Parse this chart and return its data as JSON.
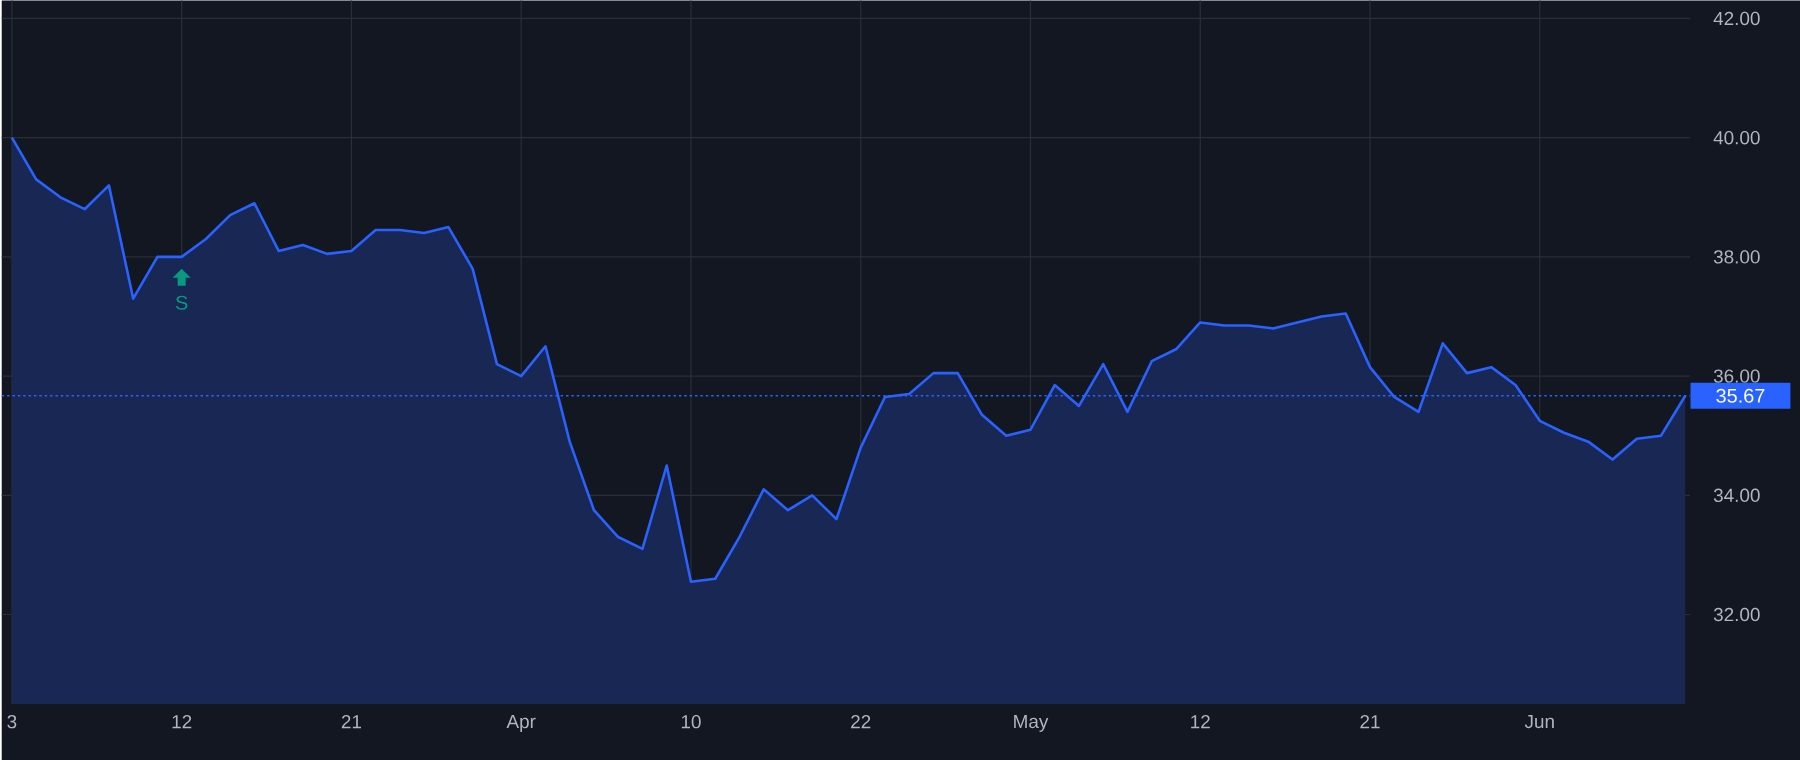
{
  "chart_data": {
    "type": "area",
    "categories": [
      "3",
      null,
      null,
      null,
      null,
      null,
      null,
      "12",
      null,
      null,
      null,
      null,
      null,
      null,
      "21",
      null,
      null,
      null,
      null,
      null,
      null,
      "Apr",
      null,
      null,
      null,
      null,
      null,
      null,
      "10",
      null,
      null,
      null,
      null,
      null,
      null,
      "22",
      null,
      null,
      null,
      null,
      null,
      null,
      "May",
      null,
      null,
      null,
      null,
      null,
      null,
      "12",
      null,
      null,
      null,
      null,
      null,
      null,
      "21",
      null,
      null,
      null,
      null,
      null,
      null,
      "Jun",
      null,
      null,
      null,
      null,
      null,
      null
    ],
    "series": [
      {
        "color": "#2962ff",
        "values": [
          40.0,
          39.3,
          39.0,
          38.8,
          39.2,
          37.3,
          38.0,
          38.0,
          38.3,
          38.7,
          38.9,
          38.1,
          38.2,
          38.05,
          38.1,
          38.45,
          38.45,
          38.4,
          38.5,
          37.8,
          36.2,
          36.0,
          36.5,
          34.9,
          33.75,
          33.3,
          33.1,
          34.5,
          32.55,
          32.6,
          33.3,
          34.1,
          33.75,
          34.0,
          33.6,
          34.8,
          35.65,
          35.7,
          36.05,
          36.05,
          35.35,
          35.0,
          35.1,
          35.85,
          35.5,
          36.2,
          35.4,
          36.25,
          36.45,
          36.9,
          36.85,
          36.85,
          36.8,
          36.9,
          37.0,
          37.05,
          36.15,
          35.65,
          35.4,
          36.55,
          36.05,
          36.15,
          35.85,
          35.25,
          35.05,
          34.9,
          34.6,
          34.95,
          35.0,
          35.67
        ]
      }
    ],
    "ylim": [
      30.5,
      42.3
    ],
    "yticks": [
      {
        "value": 32,
        "label": "32.00"
      },
      {
        "value": 34,
        "label": "34.00"
      },
      {
        "value": 36,
        "label": "36.00"
      },
      {
        "value": 38,
        "label": "38.00"
      },
      {
        "value": 40,
        "label": "40.00"
      },
      {
        "value": 42,
        "label": "42.00"
      }
    ],
    "grid": true,
    "ref_lines": [
      {
        "axis": "y",
        "value": 35.67,
        "label": "35.67",
        "color": "#2962ff",
        "line_style": "dotted"
      }
    ],
    "annotations": [
      {
        "text": "S",
        "x": "12",
        "y": 37.97
      }
    ]
  }
}
